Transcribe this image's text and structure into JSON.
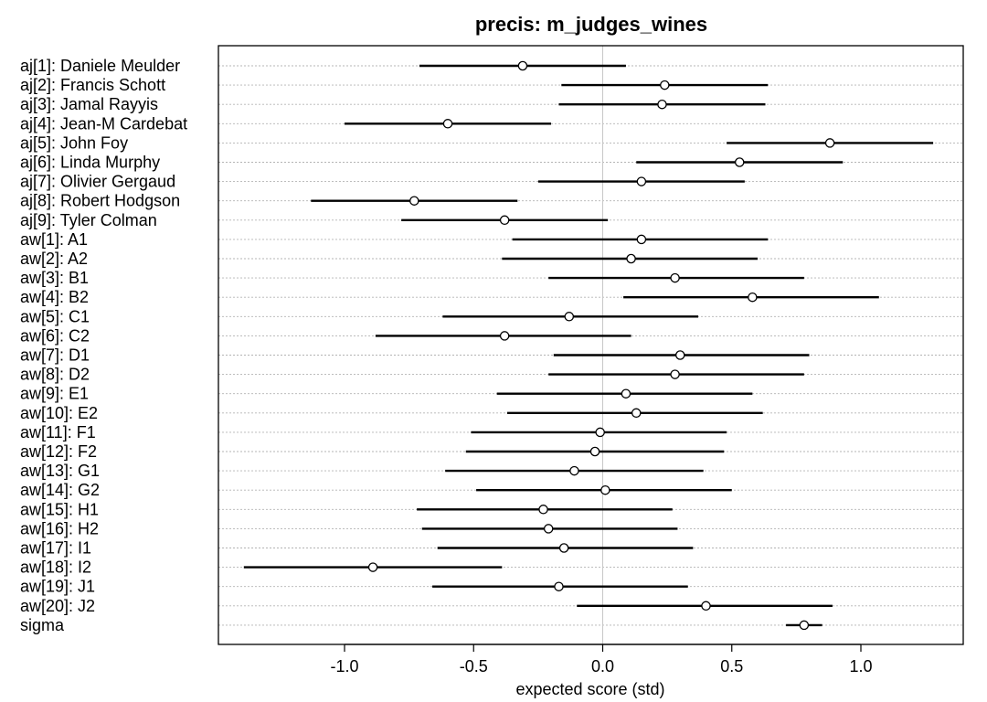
{
  "chart_data": {
    "type": "forest",
    "title": "precis: m_judges_wines",
    "xlabel": "expected score (std)",
    "xlim": [
      -1.4,
      1.3
    ],
    "xticks": [
      -1.0,
      -0.5,
      0.0,
      0.5,
      1.0
    ],
    "xtick_labels": [
      "-1.0",
      "-0.5",
      "0.0",
      "0.5",
      "1.0"
    ],
    "reference_line": 0.0,
    "grid": "horizontal dotted per row",
    "rows": [
      {
        "label": "aj[1]: Daniele Meulder",
        "mean": -0.31,
        "lower": -0.71,
        "upper": 0.09
      },
      {
        "label": "aj[2]: Francis Schott",
        "mean": 0.24,
        "lower": -0.16,
        "upper": 0.64
      },
      {
        "label": "aj[3]: Jamal Rayyis",
        "mean": 0.23,
        "lower": -0.17,
        "upper": 0.63
      },
      {
        "label": "aj[4]: Jean-M Cardebat",
        "mean": -0.6,
        "lower": -1.0,
        "upper": -0.2
      },
      {
        "label": "aj[5]: John Foy",
        "mean": 0.88,
        "lower": 0.48,
        "upper": 1.28
      },
      {
        "label": "aj[6]: Linda Murphy",
        "mean": 0.53,
        "lower": 0.13,
        "upper": 0.93
      },
      {
        "label": "aj[7]: Olivier Gergaud",
        "mean": 0.15,
        "lower": -0.25,
        "upper": 0.55
      },
      {
        "label": "aj[8]: Robert Hodgson",
        "mean": -0.73,
        "lower": -1.13,
        "upper": -0.33
      },
      {
        "label": "aj[9]: Tyler Colman",
        "mean": -0.38,
        "lower": -0.78,
        "upper": 0.02
      },
      {
        "label": "aw[1]: A1",
        "mean": 0.15,
        "lower": -0.35,
        "upper": 0.64
      },
      {
        "label": "aw[2]: A2",
        "mean": 0.11,
        "lower": -0.39,
        "upper": 0.6
      },
      {
        "label": "aw[3]: B1",
        "mean": 0.28,
        "lower": -0.21,
        "upper": 0.78
      },
      {
        "label": "aw[4]: B2",
        "mean": 0.58,
        "lower": 0.08,
        "upper": 1.07
      },
      {
        "label": "aw[5]: C1",
        "mean": -0.13,
        "lower": -0.62,
        "upper": 0.37
      },
      {
        "label": "aw[6]: C2",
        "mean": -0.38,
        "lower": -0.88,
        "upper": 0.11
      },
      {
        "label": "aw[7]: D1",
        "mean": 0.3,
        "lower": -0.19,
        "upper": 0.8
      },
      {
        "label": "aw[8]: D2",
        "mean": 0.28,
        "lower": -0.21,
        "upper": 0.78
      },
      {
        "label": "aw[9]: E1",
        "mean": 0.09,
        "lower": -0.41,
        "upper": 0.58
      },
      {
        "label": "aw[10]: E2",
        "mean": 0.13,
        "lower": -0.37,
        "upper": 0.62
      },
      {
        "label": "aw[11]: F1",
        "mean": -0.01,
        "lower": -0.51,
        "upper": 0.48
      },
      {
        "label": "aw[12]: F2",
        "mean": -0.03,
        "lower": -0.53,
        "upper": 0.47
      },
      {
        "label": "aw[13]: G1",
        "mean": -0.11,
        "lower": -0.61,
        "upper": 0.39
      },
      {
        "label": "aw[14]: G2",
        "mean": 0.01,
        "lower": -0.49,
        "upper": 0.5
      },
      {
        "label": "aw[15]: H1",
        "mean": -0.23,
        "lower": -0.72,
        "upper": 0.27
      },
      {
        "label": "aw[16]: H2",
        "mean": -0.21,
        "lower": -0.7,
        "upper": 0.29
      },
      {
        "label": "aw[17]: I1",
        "mean": -0.15,
        "lower": -0.64,
        "upper": 0.35
      },
      {
        "label": "aw[18]: I2",
        "mean": -0.89,
        "lower": -1.39,
        "upper": -0.39
      },
      {
        "label": "aw[19]: J1",
        "mean": -0.17,
        "lower": -0.66,
        "upper": 0.33
      },
      {
        "label": "aw[20]: J2",
        "mean": 0.4,
        "lower": -0.1,
        "upper": 0.89
      },
      {
        "label": "sigma",
        "mean": 0.78,
        "lower": 0.71,
        "upper": 0.85
      }
    ]
  }
}
